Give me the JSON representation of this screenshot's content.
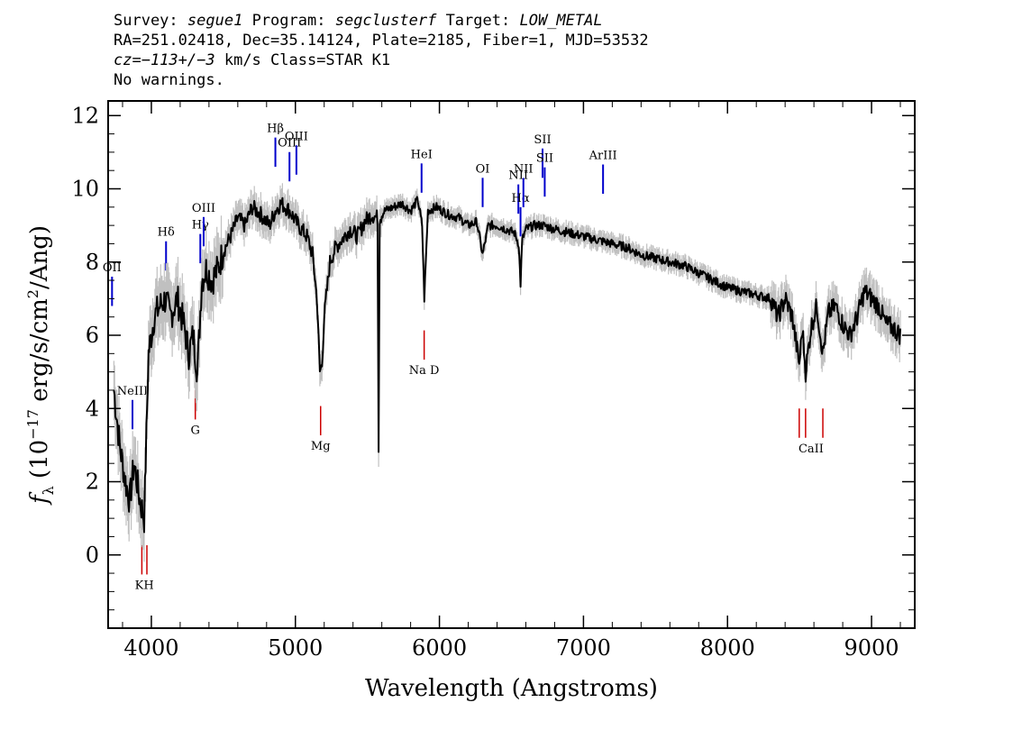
{
  "header": {
    "line1": {
      "k_survey": "Survey:",
      "survey": "segue1",
      "k_program": "Program:",
      "program": "segclusterf",
      "k_target": "Target:",
      "target": "LOW_METAL"
    },
    "line2": "RA=251.02418, Dec=35.14124, Plate=2185, Fiber=1, MJD=53532",
    "line3": {
      "cz": "cz=−113+/−3",
      "rest": "km/s Class=STAR K1"
    },
    "line4": "No warnings."
  },
  "chart_data": {
    "type": "line",
    "xlabel": "Wavelength (Angstroms)",
    "ylabel": {
      "prefix": "f",
      "sub": "λ",
      "mid": " (10",
      "sup1": "−17",
      "mid2": " erg/s/cm",
      "sup2": "2",
      "suffix": "/Ang)"
    },
    "xlim": [
      3700,
      9300
    ],
    "ylim": [
      -2,
      12.4
    ],
    "x_ticks": [
      4000,
      5000,
      6000,
      7000,
      8000,
      9000
    ],
    "x_tick_labels": [
      "4000",
      "5000",
      "6000",
      "7000",
      "8000",
      "9000"
    ],
    "y_ticks": [
      0,
      2,
      4,
      6,
      8,
      10,
      12
    ],
    "y_tick_labels": [
      "0",
      "2",
      "4",
      "6",
      "8",
      "10",
      "12"
    ],
    "colors": {
      "flux": "#000000",
      "error_band": "#c0c0c0",
      "emission": "#0000cc",
      "absorption": "#cc0000"
    },
    "series": [
      {
        "x": [
          3740,
          3780,
          3820,
          3850,
          3880,
          3920,
          3950,
          3980,
          4020,
          4060,
          4100,
          4130,
          4180,
          4230,
          4260,
          4290,
          4320,
          4350,
          4380,
          4420,
          4460,
          4500,
          4550,
          4600,
          4650,
          4700,
          4760,
          4820,
          4860,
          4900,
          4960,
          5020,
          5080,
          5120,
          5150,
          5170,
          5185,
          5200,
          5240,
          5280,
          5320,
          5380,
          5430,
          5480,
          5530,
          5570,
          5578,
          5585,
          5620,
          5680,
          5740,
          5800,
          5850,
          5880,
          5895,
          5920,
          5980,
          6060,
          6140,
          6200,
          6260,
          6300,
          6340,
          6400,
          6460,
          6520,
          6550,
          6563,
          6575,
          6600,
          6660,
          6720,
          6800,
          6900,
          7000,
          7100,
          7200,
          7300,
          7400,
          7500,
          7600,
          7700,
          7800,
          7900,
          8000,
          8100,
          8200,
          8300,
          8350,
          8400,
          8450,
          8498,
          8520,
          8542,
          8580,
          8620,
          8662,
          8700,
          8750,
          8800,
          8850,
          8900,
          8950,
          9000,
          9050,
          9100,
          9150,
          9200
        ],
        "values": [
          4.5,
          3.0,
          2.0,
          1.5,
          2.5,
          1.5,
          1.0,
          5.5,
          6.5,
          6.8,
          7.0,
          6.5,
          7.0,
          6.2,
          5.5,
          6.0,
          5.0,
          7.5,
          7.8,
          7.5,
          7.8,
          8.3,
          8.7,
          9.2,
          9.0,
          9.5,
          9.3,
          9.0,
          9.4,
          9.6,
          9.4,
          9.0,
          8.7,
          8.2,
          7.0,
          5.0,
          5.2,
          6.5,
          8.0,
          8.4,
          8.6,
          8.9,
          8.7,
          9.1,
          9.3,
          9.2,
          3.0,
          9.2,
          9.4,
          9.5,
          9.6,
          9.4,
          9.7,
          9.0,
          7.0,
          9.4,
          9.5,
          9.3,
          9.2,
          9.0,
          9.1,
          8.2,
          9.0,
          9.0,
          8.9,
          8.8,
          8.5,
          7.4,
          8.6,
          8.9,
          9.0,
          9.0,
          8.9,
          8.8,
          8.7,
          8.6,
          8.5,
          8.4,
          8.2,
          8.1,
          8.0,
          7.9,
          7.7,
          7.5,
          7.3,
          7.2,
          7.1,
          7.0,
          6.5,
          7.0,
          6.5,
          5.2,
          6.2,
          5.0,
          6.2,
          6.8,
          5.5,
          6.6,
          6.8,
          6.3,
          6.0,
          6.5,
          7.2,
          7.0,
          6.8,
          6.3,
          6.2,
          6.0
        ]
      }
    ],
    "emission_lines": [
      {
        "label": "OII",
        "wave": 3727
      },
      {
        "label": "NeIII",
        "wave": 3869
      },
      {
        "label": "Hδ",
        "wave": 4102
      },
      {
        "label": "Hγ",
        "wave": 4340
      },
      {
        "label": "OIII",
        "wave": 4363
      },
      {
        "label": "Hβ",
        "wave": 4861
      },
      {
        "label": "OIII",
        "wave": 4959
      },
      {
        "label": "OIII",
        "wave": 5007
      },
      {
        "label": "HeI",
        "wave": 5876
      },
      {
        "label": "OI",
        "wave": 6300
      },
      {
        "label": "NII",
        "wave": 6548
      },
      {
        "label": "Hα",
        "wave": 6563
      },
      {
        "label": "NII",
        "wave": 6583
      },
      {
        "label": "SII",
        "wave": 6716
      },
      {
        "label": "SII",
        "wave": 6731
      },
      {
        "label": "ArIII",
        "wave": 7136
      }
    ],
    "absorption_lines": [
      {
        "label": "KH",
        "waves": [
          3934,
          3969
        ]
      },
      {
        "label": "G",
        "waves": [
          4305
        ]
      },
      {
        "label": "Mg",
        "waves": [
          5175
        ]
      },
      {
        "label": "Na D",
        "waves": [
          5894
        ]
      },
      {
        "label": "CaII",
        "waves": [
          8498,
          8542,
          8662
        ]
      }
    ]
  }
}
